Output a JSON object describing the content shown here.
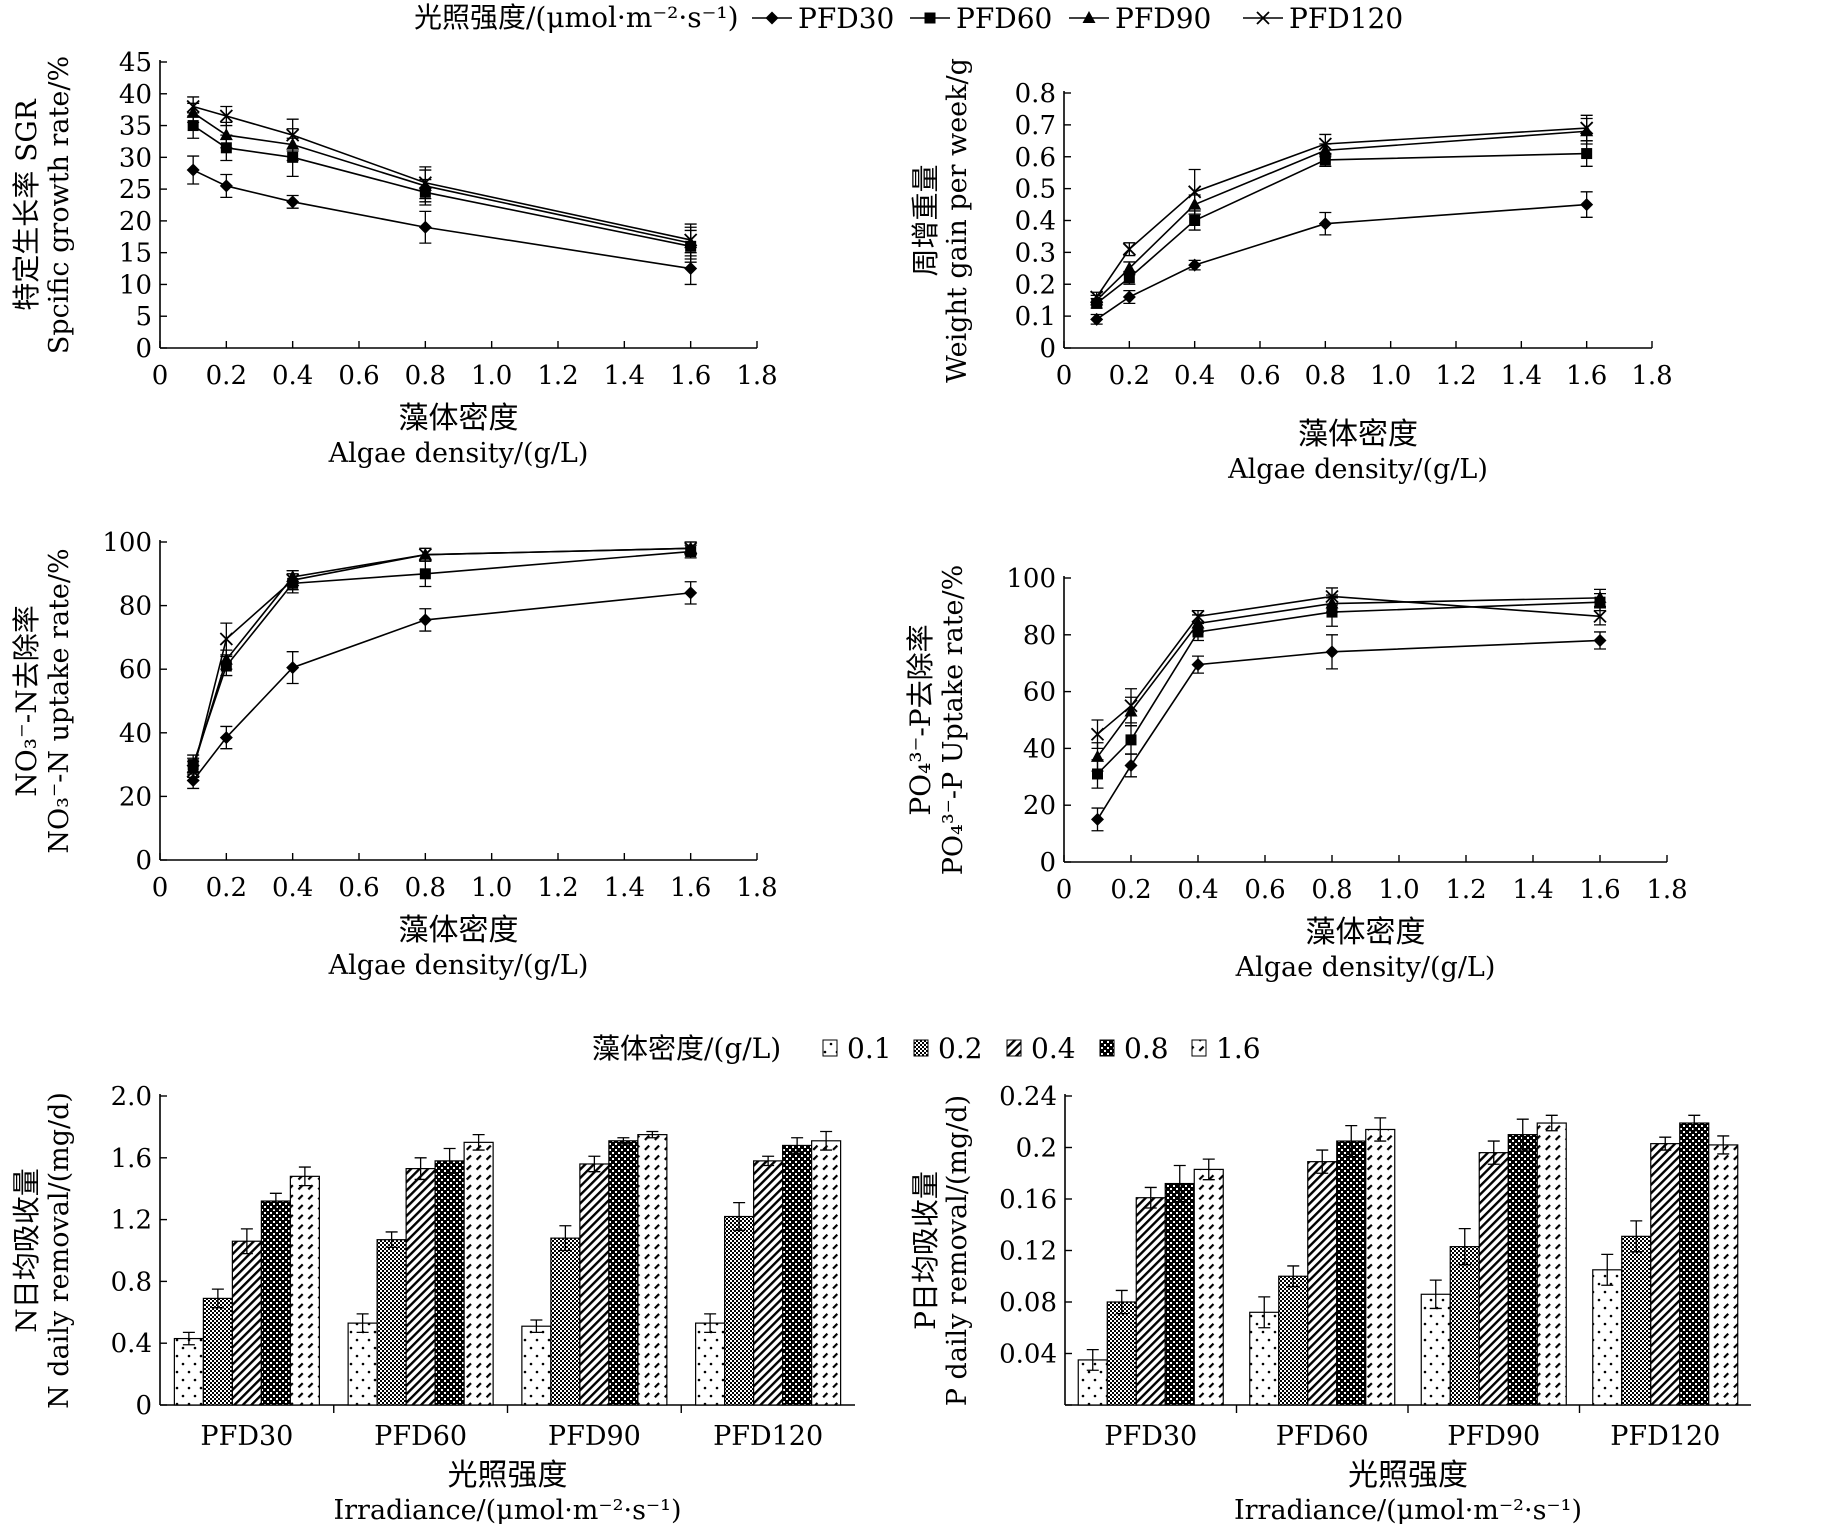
{
  "line_legend": {
    "title": "光照强度/(μmol·m⁻²·s⁻¹)",
    "entries": [
      {
        "label": "PFD30",
        "marker": "diamond"
      },
      {
        "label": "PFD60",
        "marker": "square"
      },
      {
        "label": "PFD90",
        "marker": "triangle"
      },
      {
        "label": "PFD120",
        "marker": "cross"
      }
    ]
  },
  "bar_legend": {
    "title": "藻体密度/(g/L)",
    "entries": [
      {
        "label": "0.1",
        "pattern": "dots"
      },
      {
        "label": "0.2",
        "pattern": "check"
      },
      {
        "label": "0.4",
        "pattern": "diag"
      },
      {
        "label": "0.8",
        "pattern": "dense-check"
      },
      {
        "label": "1.6",
        "pattern": "dash-diag"
      }
    ]
  },
  "chart_data": [
    {
      "type": "line",
      "ylabel_cn": "特定生长率 SGR",
      "ylabel_en": "Spcific growth rate/%",
      "xlabel_cn": "藻体密度",
      "xlabel_en": "Algae density/(g/L)",
      "xlim": [
        0,
        1.8
      ],
      "ylim": [
        0,
        45
      ],
      "xticks": [
        "0",
        "0.2",
        "0.4",
        "0.6",
        "0.8",
        "1.0",
        "1.2",
        "1.4",
        "1.6",
        "1.8"
      ],
      "yticks": [
        "0",
        "5",
        "10",
        "15",
        "20",
        "25",
        "30",
        "35",
        "40",
        "45"
      ],
      "x": [
        0.1,
        0.2,
        0.4,
        0.8,
        1.6
      ],
      "series": [
        {
          "name": "PFD30",
          "values": [
            28,
            25.5,
            23,
            19,
            12.5
          ],
          "err": [
            2.2,
            1.8,
            1,
            2.5,
            2.5
          ]
        },
        {
          "name": "PFD60",
          "values": [
            35,
            31.5,
            30,
            24.5,
            16
          ],
          "err": [
            2,
            2,
            3,
            2,
            2.5
          ]
        },
        {
          "name": "PFD90",
          "values": [
            37,
            33.5,
            32,
            25.5,
            16.5
          ],
          "err": [
            1.5,
            2,
            2.5,
            2.5,
            2.5
          ]
        },
        {
          "name": "PFD120",
          "values": [
            38,
            36.5,
            33.5,
            26,
            17
          ],
          "err": [
            1.5,
            1.5,
            2.5,
            2.5,
            2.5
          ]
        }
      ]
    },
    {
      "type": "line",
      "ylabel_cn": "周增重量",
      "ylabel_en": "Weight gain per week/g",
      "xlabel_cn": "藻体密度",
      "xlabel_en": "Algae density/(g/L)",
      "xlim": [
        0,
        1.8
      ],
      "ylim": [
        0,
        0.8
      ],
      "xticks": [
        "0",
        "0.2",
        "0.4",
        "0.6",
        "0.8",
        "1.0",
        "1.2",
        "1.4",
        "1.6",
        "1.8"
      ],
      "yticks": [
        "0",
        "0.1",
        "0.2",
        "0.3",
        "0.4",
        "0.5",
        "0.6",
        "0.7",
        "0.8"
      ],
      "x": [
        0.1,
        0.2,
        0.4,
        0.8,
        1.6
      ],
      "series": [
        {
          "name": "PFD30",
          "values": [
            0.09,
            0.16,
            0.26,
            0.39,
            0.45
          ],
          "err": [
            0.015,
            0.02,
            0.015,
            0.035,
            0.04
          ]
        },
        {
          "name": "PFD60",
          "values": [
            0.14,
            0.22,
            0.4,
            0.59,
            0.61
          ],
          "err": [
            0.015,
            0.02,
            0.03,
            0.02,
            0.04
          ]
        },
        {
          "name": "PFD90",
          "values": [
            0.15,
            0.25,
            0.45,
            0.62,
            0.68
          ],
          "err": [
            0.015,
            0.02,
            0.03,
            0.02,
            0.04
          ]
        },
        {
          "name": "PFD120",
          "values": [
            0.16,
            0.31,
            0.49,
            0.64,
            0.69
          ],
          "err": [
            0.015,
            0.02,
            0.07,
            0.03,
            0.04
          ]
        }
      ]
    },
    {
      "type": "line",
      "ylabel_cn": "NO₃⁻-N去除率",
      "ylabel_en": "NO₃⁻-N uptake rate/%",
      "xlabel_cn": "藻体密度",
      "xlabel_en": "Algae density/(g/L)",
      "xlim": [
        0,
        1.8
      ],
      "ylim": [
        0,
        100
      ],
      "xticks": [
        "0",
        "0.2",
        "0.4",
        "0.6",
        "0.8",
        "1.0",
        "1.2",
        "1.4",
        "1.6",
        "1.8"
      ],
      "yticks": [
        "0",
        "20",
        "40",
        "60",
        "80",
        "100"
      ],
      "x": [
        0.1,
        0.2,
        0.4,
        0.8,
        1.6
      ],
      "series": [
        {
          "name": "PFD30",
          "values": [
            25,
            38.5,
            60.5,
            75.5,
            84
          ],
          "err": [
            2.5,
            3.5,
            5,
            3.5,
            3.5
          ]
        },
        {
          "name": "PFD60",
          "values": [
            30,
            61,
            87,
            90,
            97
          ],
          "err": [
            3,
            3,
            3,
            4,
            2
          ]
        },
        {
          "name": "PFD90",
          "values": [
            29,
            63,
            89,
            96,
            98
          ],
          "err": [
            3,
            3,
            2,
            2,
            2
          ]
        },
        {
          "name": "PFD120",
          "values": [
            28,
            69.5,
            88,
            96,
            98
          ],
          "err": [
            3,
            5,
            3,
            2,
            2
          ]
        }
      ]
    },
    {
      "type": "line",
      "ylabel_cn": "PO₄³⁻-P去除率",
      "ylabel_en": "PO₄³⁻-P Uptake rate/%",
      "xlabel_cn": "藻体密度",
      "xlabel_en": "Algae density/(g/L)",
      "xlim": [
        0,
        1.8
      ],
      "ylim": [
        0,
        100
      ],
      "xticks": [
        "0",
        "0.2",
        "0.4",
        "0.6",
        "0.8",
        "1.0",
        "1.2",
        "1.4",
        "1.6",
        "1.8"
      ],
      "yticks": [
        "0",
        "20",
        "40",
        "60",
        "80",
        "100"
      ],
      "x": [
        0.1,
        0.2,
        0.4,
        0.8,
        1.6
      ],
      "series": [
        {
          "name": "PFD30",
          "values": [
            15,
            34,
            69.5,
            74,
            78
          ],
          "err": [
            4,
            4,
            3,
            6,
            3
          ]
        },
        {
          "name": "PFD60",
          "values": [
            31,
            43,
            81,
            88,
            91.5
          ],
          "err": [
            5,
            5,
            3,
            5,
            3
          ]
        },
        {
          "name": "PFD90",
          "values": [
            37,
            53,
            84,
            91,
            93
          ],
          "err": [
            5,
            5,
            3,
            3,
            3
          ]
        },
        {
          "name": "PFD120",
          "values": [
            45,
            55,
            86.5,
            93.5,
            86.5
          ],
          "err": [
            5,
            6,
            2,
            3,
            3
          ]
        }
      ]
    },
    {
      "type": "bar",
      "ylabel_cn": "N日均吸收量",
      "ylabel_en": "N daily removal/(mg/d)",
      "xlabel_cn": "光照强度",
      "xlabel_en": "Irradiance/(μmol·m⁻²·s⁻¹)",
      "ylim": [
        0,
        2.0
      ],
      "yticks": [
        "0",
        "0.4",
        "0.8",
        "1.2",
        "1.6",
        "2.0"
      ],
      "categories": [
        "PFD30",
        "PFD60",
        "PFD90",
        "PFD120"
      ],
      "series": [
        {
          "name": "0.1",
          "values": [
            0.43,
            0.53,
            0.51,
            0.53
          ],
          "err": [
            0.04,
            0.06,
            0.04,
            0.06
          ]
        },
        {
          "name": "0.2",
          "values": [
            0.69,
            1.07,
            1.08,
            1.22
          ],
          "err": [
            0.06,
            0.05,
            0.08,
            0.09
          ]
        },
        {
          "name": "0.4",
          "values": [
            1.06,
            1.53,
            1.56,
            1.58
          ],
          "err": [
            0.08,
            0.07,
            0.05,
            0.03
          ]
        },
        {
          "name": "0.8",
          "values": [
            1.32,
            1.58,
            1.71,
            1.68
          ],
          "err": [
            0.05,
            0.08,
            0.02,
            0.05
          ]
        },
        {
          "name": "1.6",
          "values": [
            1.48,
            1.7,
            1.75,
            1.71
          ],
          "err": [
            0.06,
            0.05,
            0.02,
            0.06
          ]
        }
      ]
    },
    {
      "type": "bar",
      "ylabel_cn": "P日均吸收量",
      "ylabel_en": "P daily removal/(mg/d)",
      "xlabel_cn": "光照强度",
      "xlabel_en": "Irradiance/(μmol·m⁻²·s⁻¹)",
      "ylim": [
        0,
        0.24
      ],
      "yticks": [
        "",
        "0.04",
        "0.08",
        "0.12",
        "0.16",
        "0.2",
        "0.24"
      ],
      "categories": [
        "PFD30",
        "PFD60",
        "PFD90",
        "PFD120"
      ],
      "series": [
        {
          "name": "0.1",
          "values": [
            0.035,
            0.072,
            0.086,
            0.105
          ],
          "err": [
            0.008,
            0.012,
            0.011,
            0.012
          ]
        },
        {
          "name": "0.2",
          "values": [
            0.08,
            0.1,
            0.123,
            0.131
          ],
          "err": [
            0.009,
            0.008,
            0.014,
            0.012
          ]
        },
        {
          "name": "0.4",
          "values": [
            0.161,
            0.189,
            0.196,
            0.203
          ],
          "err": [
            0.008,
            0.009,
            0.009,
            0.005
          ]
        },
        {
          "name": "0.8",
          "values": [
            0.172,
            0.205,
            0.21,
            0.219
          ],
          "err": [
            0.014,
            0.012,
            0.012,
            0.006
          ]
        },
        {
          "name": "1.6",
          "values": [
            0.183,
            0.214,
            0.219,
            0.202
          ],
          "err": [
            0.008,
            0.009,
            0.006,
            0.007
          ]
        }
      ]
    }
  ]
}
